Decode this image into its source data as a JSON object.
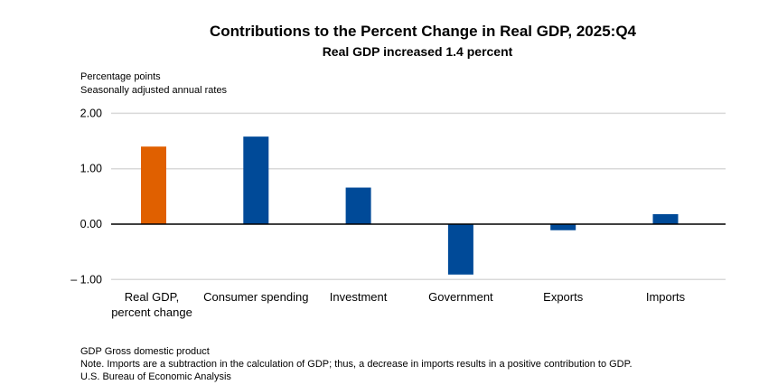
{
  "chart_data": {
    "type": "bar",
    "title": "Contributions to the Percent Change in Real GDP, 2025:Q4",
    "subtitle": "Real GDP increased 1.4 percent",
    "ylabel": "Percentage points",
    "ylabel2": "Seasonally adjusted annual rates",
    "categories": [
      [
        "Real GDP,",
        "percent change"
      ],
      [
        "Consumer spending"
      ],
      [
        "Investment"
      ],
      [
        "Government"
      ],
      [
        "Exports"
      ],
      [
        "Imports"
      ]
    ],
    "values": [
      1.4,
      1.58,
      0.66,
      -0.91,
      -0.11,
      0.18
    ],
    "colors": [
      "#E06000",
      "#004A98",
      "#004A98",
      "#004A98",
      "#004A98",
      "#004A98"
    ],
    "ylim": [
      -1.0,
      2.0
    ],
    "yticks": [
      "2.00",
      "1.00",
      "0.00",
      "– 1.00"
    ],
    "ytick_values": [
      2,
      1,
      0,
      -1
    ],
    "grid": true
  },
  "notes": [
    "GDP Gross domestic product",
    "Note. Imports are a subtraction in the calculation of GDP; thus, a decrease in imports results in a positive contribution to GDP.",
    "U.S. Bureau of Economic Analysis"
  ]
}
